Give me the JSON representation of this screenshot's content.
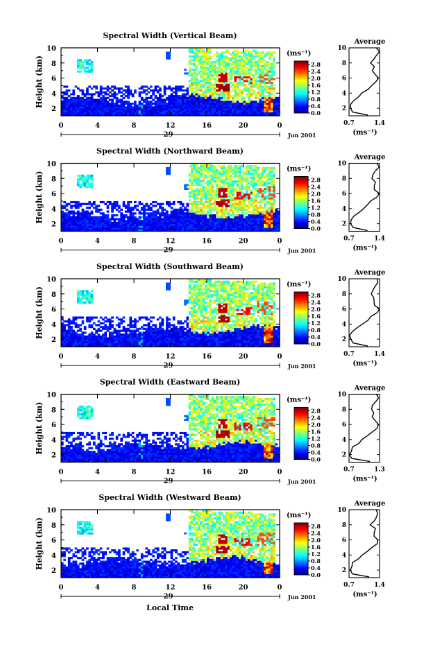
{
  "chart_data": {
    "type": "heatmap",
    "panels": [
      {
        "title": "Spectral Width (Vertical Beam)",
        "avg_xticks": [
          "0.7",
          "1.4"
        ]
      },
      {
        "title": "Spectral Width (Northward Beam)",
        "avg_xticks": [
          "0.7",
          "1.4"
        ]
      },
      {
        "title": "Spectral Width (Southward Beam)",
        "avg_xticks": [
          "0.7",
          "1.4"
        ]
      },
      {
        "title": "Spectral Width (Eastward Beam)",
        "avg_xticks": [
          "0.7",
          "1.3"
        ]
      },
      {
        "title": "Spectral Width (Westward Beam)",
        "avg_xticks": [
          "0.7",
          "1.4"
        ]
      }
    ],
    "ylabel": "Height (km)",
    "xlabel": "Local Time",
    "yticks": [
      "2",
      "4",
      "6",
      "8",
      "10"
    ],
    "ylim": [
      1,
      10
    ],
    "xticks": [
      "0",
      "4",
      "8",
      "12",
      "16",
      "20",
      "0"
    ],
    "xlim": [
      0,
      24
    ],
    "day_label": "29",
    "month_label": "Jun 2001",
    "colorbar": {
      "unit": "(ms⁻¹)",
      "ticks": [
        "0.0",
        "0.4",
        "0.8",
        "1.2",
        "1.6",
        "2.0",
        "2.4",
        "2.8"
      ],
      "range": [
        0,
        3.0
      ]
    },
    "avg_title": "Average",
    "avg_xlabel": "(ms⁻¹)",
    "avg_yticks": [
      "2",
      "4",
      "6",
      "8",
      "10"
    ],
    "avg_profile": [
      {
        "h": 1.1,
        "w": 1.15
      },
      {
        "h": 1.5,
        "w": 0.78
      },
      {
        "h": 2.0,
        "w": 0.72
      },
      {
        "h": 2.5,
        "w": 0.74
      },
      {
        "h": 3.0,
        "w": 0.8
      },
      {
        "h": 3.5,
        "w": 0.9
      },
      {
        "h": 4.0,
        "w": 1.02
      },
      {
        "h": 4.5,
        "w": 1.12
      },
      {
        "h": 5.0,
        "w": 1.22
      },
      {
        "h": 5.5,
        "w": 1.32
      },
      {
        "h": 6.0,
        "w": 1.38
      },
      {
        "h": 6.5,
        "w": 1.3
      },
      {
        "h": 7.0,
        "w": 1.25
      },
      {
        "h": 7.5,
        "w": 1.28
      },
      {
        "h": 8.0,
        "w": 1.2
      },
      {
        "h": 8.5,
        "w": 1.26
      },
      {
        "h": 9.0,
        "w": 1.3
      },
      {
        "h": 9.5,
        "w": 1.38
      },
      {
        "h": 10.0,
        "w": 1.35
      }
    ]
  }
}
